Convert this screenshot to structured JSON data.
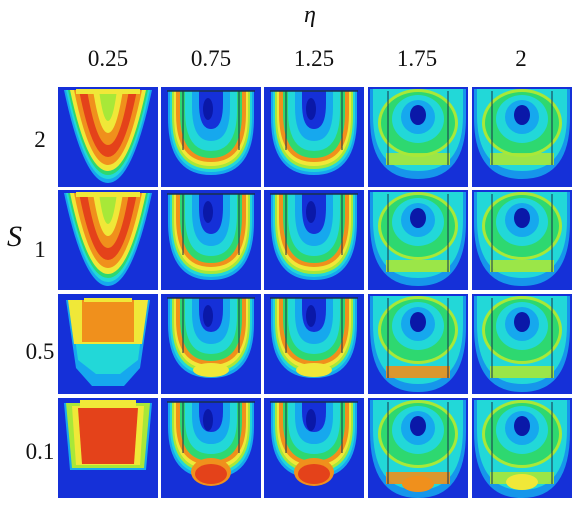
{
  "figure": {
    "column_axis_symbol": "η",
    "row_axis_symbol": "S",
    "column_values": [
      "0.25",
      "0.75",
      "1.25",
      "1.75",
      "2"
    ],
    "row_values": [
      "2",
      "1",
      "0.5",
      "0.1"
    ],
    "colors": {
      "background": "#1530d8",
      "light_blue": "#16a8ee",
      "cyan": "#22d8d8",
      "green": "#2ed870",
      "yellow_green": "#a8e838",
      "yellow": "#f0e838",
      "orange": "#f0901c",
      "red": "#e4421a",
      "dark_blue": "#0a18a8"
    }
  }
}
